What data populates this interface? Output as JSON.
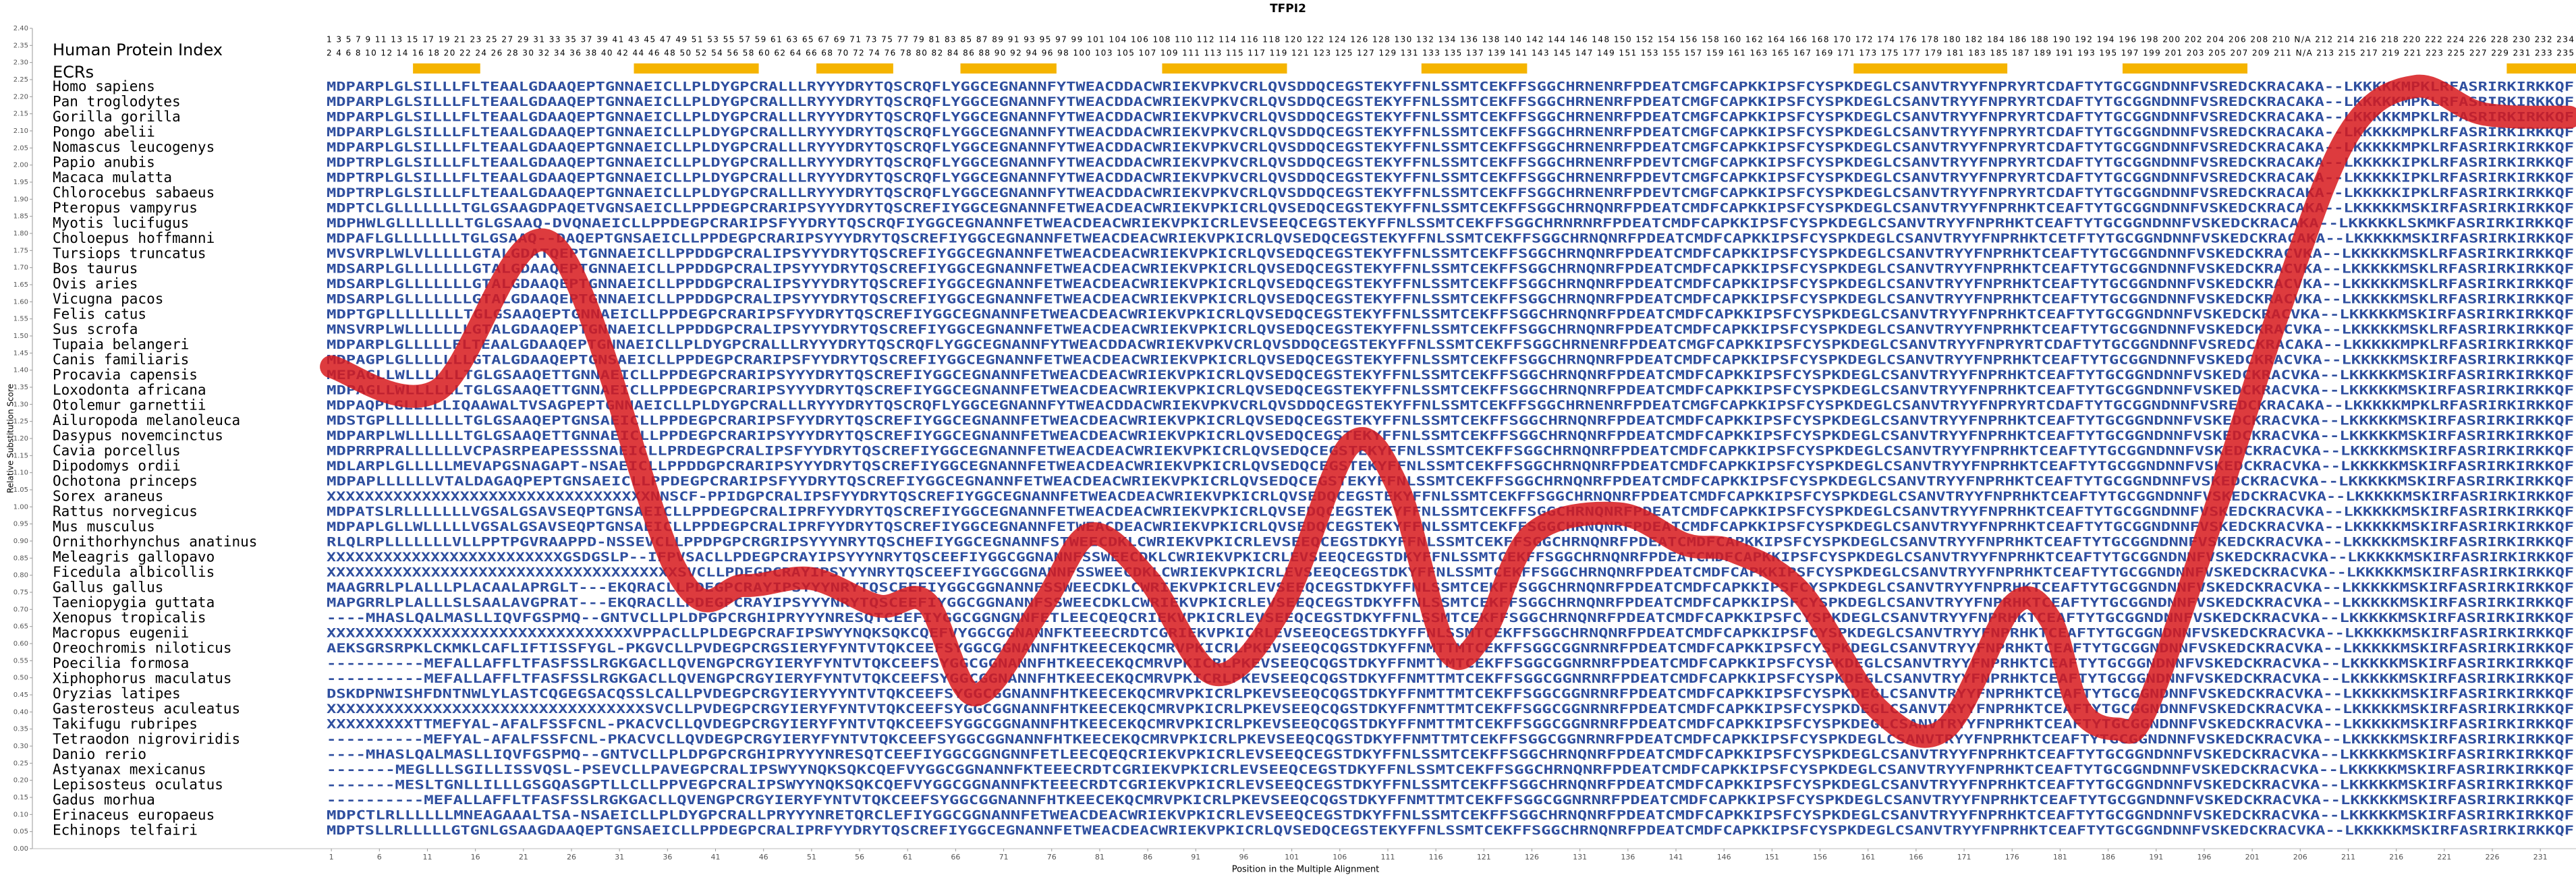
{
  "chart_data": {
    "type": "line",
    "title": "TFPI2",
    "ylabel": "Relative Substitution Score",
    "xlabel": "Position in the Multiple Alignment",
    "color": "#d7191c",
    "xlim": [
      0.5,
      234.5
    ],
    "ylim": [
      0,
      2.4
    ],
    "xticks": [
      1,
      6,
      11,
      16,
      21,
      26,
      31,
      36,
      41,
      46,
      51,
      56,
      61,
      66,
      71,
      76,
      81,
      86,
      91,
      96,
      101,
      106,
      111,
      116,
      121,
      126,
      131,
      136,
      141,
      146,
      151,
      156,
      161,
      166,
      171,
      176,
      181,
      186,
      191,
      196,
      201,
      206,
      211,
      216,
      221,
      226,
      231
    ],
    "yticks": [
      {
        "value": 0,
        "label": "0.00"
      },
      {
        "value": 0.05,
        "label": "0.05"
      },
      {
        "value": 0.1,
        "label": "0.10"
      },
      {
        "value": 0.15,
        "label": "0.15"
      },
      {
        "value": 0.2,
        "label": "0.20"
      },
      {
        "value": 0.25,
        "label": "0.25"
      },
      {
        "value": 0.3,
        "label": "0.30"
      },
      {
        "value": 0.35,
        "label": "0.35"
      },
      {
        "value": 0.4,
        "label": "0.40"
      },
      {
        "value": 0.45,
        "label": "0.45"
      },
      {
        "value": 0.5,
        "label": "0.50"
      },
      {
        "value": 0.55,
        "label": "0.55"
      },
      {
        "value": 0.6,
        "label": "0.60"
      },
      {
        "value": 0.65,
        "label": "0.65"
      },
      {
        "value": 0.7,
        "label": "0.70"
      },
      {
        "value": 0.75,
        "label": "0.75"
      },
      {
        "value": 0.8,
        "label": "0.80"
      },
      {
        "value": 0.85,
        "label": "0.85"
      },
      {
        "value": 0.9,
        "label": "0.90"
      },
      {
        "value": 0.95,
        "label": "0.95"
      },
      {
        "value": 1,
        "label": "1.00"
      },
      {
        "value": 1.05,
        "label": "1.05"
      },
      {
        "value": 1.1,
        "label": "1.10"
      },
      {
        "value": 1.15,
        "label": "1.15"
      },
      {
        "value": 1.2,
        "label": "1.20"
      },
      {
        "value": 1.25,
        "label": "1.25"
      },
      {
        "value": 1.3,
        "label": "1.30"
      },
      {
        "value": 1.35,
        "label": "1.35"
      },
      {
        "value": 1.4,
        "label": "1.40"
      },
      {
        "value": 1.45,
        "label": "1.45"
      },
      {
        "value": 1.5,
        "label": "1.50"
      },
      {
        "value": 1.55,
        "label": "1.55"
      },
      {
        "value": 1.6,
        "label": "1.60"
      },
      {
        "value": 1.65,
        "label": "1.65"
      },
      {
        "value": 1.7,
        "label": "1.70"
      },
      {
        "value": 1.75,
        "label": "1.75"
      },
      {
        "value": 1.8,
        "label": "1.80"
      },
      {
        "value": 1.85,
        "label": "1.85"
      },
      {
        "value": 1.9,
        "label": "1.90"
      },
      {
        "value": 1.95,
        "label": "1.95"
      },
      {
        "value": 2,
        "label": "2.00"
      },
      {
        "value": 2.05,
        "label": "2.05"
      },
      {
        "value": 2.1,
        "label": "2.10"
      },
      {
        "value": 2.15,
        "label": "2.15"
      },
      {
        "value": 2.2,
        "label": "2.20"
      },
      {
        "value": 2.25,
        "label": "2.25"
      },
      {
        "value": 2.3,
        "label": "2.30"
      },
      {
        "value": 2.35,
        "label": "2.35"
      },
      {
        "value": 2.4,
        "label": "2.40"
      }
    ],
    "x": [
      1,
      12,
      24,
      37,
      44,
      51,
      58,
      63,
      68,
      75,
      80,
      86,
      93,
      100,
      107,
      112,
      117,
      121,
      126,
      135,
      142,
      147,
      154,
      162,
      169,
      176,
      180,
      183,
      187,
      190,
      197,
      204,
      211,
      218,
      225,
      234
    ],
    "values": [
      1.41,
      1.34,
      1.77,
      0.81,
      0.77,
      0.79,
      0.71,
      0.72,
      0.45,
      0.71,
      0.92,
      0.79,
      0.51,
      0.71,
      1.18,
      1.06,
      0.59,
      0.63,
      0.92,
      0.98,
      0.89,
      0.87,
      0.75,
      0.41,
      0.35,
      0.71,
      0.67,
      0.41,
      0.35,
      0.41,
      0.98,
      1.59,
      2.09,
      2.23,
      2.15,
      2.14
    ],
    "alignment": {
      "index_label": "Human Protein Index",
      "ecr_label": "ECRs",
      "ecr_color": "#f5b400",
      "index_rows": [
        "1 3 5 7 9 11 13 15 17 19 21 23 25 27 29 31 33 35 37 39 41 43 45 47 49 51 53 55 57 59 61 63 65 67 69 71 73 75 77 79 81 83 85 87 89 91 93 95 97 99 101 104 106 108 110 112 114 116 118 120 122 124 126 128 130 132 134 136 138 140 142 144 146 148 150 152 154 156 158 160 162 164 166 168 170 172 174 176 178 180 182 184 186 188 190 192 194 196 198 200 202 204 206 208 210 N/A 212 214 216 218 220 222 224 226 228 230 232 234",
        "2 4 6 8 10 12 14 16 18 20 22 24 26 28 30 32 34 36 38 40 42 44 46 48 50 52 54 56 58 60 62 64 66 68 70 72 74 76 78 80 82 84 86 88 90 92 94 96 98 100 103 105 107 109 111 113 115 117 119 121 123 125 127 129 131 133 135 137 139 141 143 145 147 149 151 153 155 157 159 161 163 165 167 169 171 173 175 177 179 181 183 185 187 189 191 193 195 197 199 201 203 205 207 209 211 N/A 213 215 217 219 221 223 225 227 229 231 233 235"
      ],
      "ecrs": [
        [
          10,
          16
        ],
        [
          33,
          45
        ],
        [
          52,
          59
        ],
        [
          67,
          76
        ],
        [
          88,
          100
        ],
        [
          115,
          125
        ],
        [
          160,
          175
        ],
        [
          188,
          200
        ],
        [
          228,
          235
        ]
      ],
      "species": [
        "Homo sapiens",
        "Pan troglodytes",
        "Gorilla gorilla",
        "Pongo abelii",
        "Nomascus leucogenys",
        "Papio anubis",
        "Macaca mulatta",
        "Chlorocebus sabaeus",
        "Pteropus vampyrus",
        "Myotis lucifugus",
        "Choloepus hoffmanni",
        "Tursiops truncatus",
        "Bos taurus",
        "Ovis aries",
        "Vicugna pacos",
        "Felis catus",
        "Sus scrofa",
        "Tupaia belangeri",
        "Canis familiaris",
        "Procavia capensis",
        "Loxodonta africana",
        "Otolemur garnettii",
        "Ailuropoda melanoleuca",
        "Dasypus novemcinctus",
        "Cavia porcellus",
        "Dipodomys ordii",
        "Ochotona princeps",
        "Sorex araneus",
        "Rattus norvegicus",
        "Mus musculus",
        "Ornithorhynchus anatinus",
        "Meleagris gallopavo",
        "Ficedula albicollis",
        "Gallus gallus",
        "Taeniopygia guttata",
        "Xenopus tropicalis",
        "Macropus eugenii",
        "Oreochromis niloticus",
        "Poecilia formosa",
        "Xiphophorus maculatus",
        "Oryzias latipes",
        "Gasterosteus aculeatus",
        "Takifugu rubripes",
        "Tetraodon nigroviridis",
        "Danio rerio",
        "Astyanax mexicanus",
        "Lepisosteus oculatus",
        "Gadus morhua",
        "Erinaceus europaeus",
        "Echinops telfairi"
      ],
      "sequences": [
        "MDPARPLGLSILLLFLTEAALGDAAQEPTGNNAEICLLPLDYGPCRALLLRYYYDRYTQSCRQFLYGGCEGNANNFYTWEACDDACWRIEKVPKVCRLQVSDDQCEGSTEKYFFNLSSMTCEKFFSGGCHRNENRFPDEATCMGFCAPKKIPSFCYSPKDEGLCSANVTRYYFNPRYRTCDAFTYTGCGGNDNNFVSREDCKRACAKA--LKKKKKMPKLRFASRIRKIRKKQF",
        "MDPARPLGLSILLLFLTEAALGDAAQEPTGNNAEICLLPLDYGPCRALLLRYYYDRYTQSCRQFLYGGCEGNANNFYTWEACDDACWRIEKVPKVCRLQVSDDQCEGSTEKYFFNLSSMTCEKFFSGGCHRNENRFPDEATCMGFCAPKKIPSFCYSPKDEGLCSANVTRYYFNPRYRTCDAFTYTGCGGNDNNFVSREDCKRACAKA--LKKKKKMPKLRFASRIRKIRKKQF",
        "MDPARPLGLSILLLFLTEAALGDAAQEPTGNNAEICLLPLDYGPCRALLLRYYYDRYTQSCRQFLYGGCEGNANNFYTWEACDDACWRIEKVPKVCRLQVSDDQCEGSTEKYFFNLSSMTCEKFFSGGCHRNENRFPDEATCMGFCAPKKIPSFCYSPKDEGLCSANVTRYYFNPRYRTCDAFTYTGCGGNDNNFVSREDCKRACAKA--LKKKKKMPKLRFASRIRKIRKKQF",
        "MDPARPLGLSILLLFLTEAALGDAAQEPTGNNAEICLLPLDYGPCRALLLRYYYDRYTQSCRQFLYGGCEGNANNFYTWEACDDACWRIEKVPKVCRLQVSDDQCEGSTEKYFFNLSSMTCEKFFSGGCHRNENRFPDEATCMGFCAPKKIPSFCYSPKDEGLCSANVTRYYFNPRYRTCDAFTYTGCGGNDNNFVSREDCKRACAKA--LKKKKKMPKLRFASRIRKIRKKQF",
        "MDPARPLGLSILLLFLTEAALGDAAQEPTGNNAEICLLPLDYGPCRALLLRYYYDRYTQSCRQFLYGGCEGNANNFYTWEACDDACWRIEKVPKVCRLQVSDDQCEGSTEKYFFNLSSMTCEKFFSGGCHRNENRFPDEATCMGFCAPKKIPSFCYSPKDEGLCSANVTRYYFNPRYRTCDAFTYTGCGGNDNNFVSREDCKRACAKA--LKKKKKMPKLRFASRIRKIRKKQF",
        "MDPTRPLGLSILLLFLTEAALGDAAQEPTGNNAEICLLPLDYGPCRALLLRYYYDRYTQSCRQFLYGGCEGNANNFYTWEACDDACWRIEKVPKVCRLQVSDDQCEGSTEKYFFNLSSMTCEKFFSGGCHRNENRFPDEVTCMGFCAPKKIPSFCYSPKDEGLCSANVTRYYFNPRYRTCDAFTYTGCGGNDNNFVSREDCKRACAKA--LKKKKKIPKLRFASRIRKIRKKQF",
        "MDPTRPLGLSILLLFLTEAALGDAAQEPTGNNAEICLLPLDYGPCRALLLRYYYDRYTQSCRQFLYGGCEGNANNFYTWEACDDACWRIEKVPKVCRLQVSDDQCEGSTEKYFFNLSSMTCEKFFSGGCHRNENRFPDEVTCMGFCAPKKIPSFCYSPKDEGLCSANVTRYYFNPRYRTCDAFTYTGCGGNDNNFVSREDCKRACAKA--LKKKKKIPKLRFASRIRKIRKKQF",
        "MDPTRPLGLSILLLFLTEAALGDAAQEPTGNNAEICLLPLDYGPCRALLLRYYYDRYTQSCRQFLYGGCEGNANNFYTWEACDDACWRIEKVPKVCRLQVSDDQCEGSTEKYFFNLSSMTCEKFFSGGCHRNENRFPDEVTCMGFCAPKKIPSFCYSPKDEGLCSANVTRYYFNPRYRTCDAFTYTGCGGNDNNFVSREDCKRACAKA--LKKKKKIPKLRFASRIRKIRKKQF",
        "MDPTCLGLLLLLLLTGLGSAAGDPAQETVGNSAEICLLPPDEGPCRARIPSYYYDRYTQSCREFIYGGCEGNANNFETWEACDEACWRIEKVPKICRLQVSEDQCEGSTEKYFFNLSSMTCEKFFSGGCHRNQNRFPDEATCMDFCAPKKIPSFCYSPKDEGLCSANVTRYYFNPRHKTCEAFTYTGCGGNDNNFVSKEDCKRACAKA--LKKKKKMSKIRFASRIRKIRKKQF",
        "MDPHWLGLLLLLLLTGLGSAAQ-DVQNAEICLLPPDEGPCRARIPSFYYDRYTQSCRQFIYGGCEGNANNFETWEACDEACWRIEKVPKICRLEVSEEQCEGSTEKYFFNLSSMTCEKFFSGGCHRNRNRFPDEATCMDFCAPKKIPSFCYSPKDEGLCSANVTRYYFNPRHKTCEAFTYTGCGGNDNNFVSKEDCKRACAKA--LKKKKKLSKMKFASRIRKIRKKQF",
        "MDPAFLGLLLLLLLTGLGSAAQ--DAQEPTGNSAEICLLPPDEGPCRARIPSYYYDRYTQSCREFIYGGCEGNANNFETWEACDEACWRIEKVPKICRLQVSEDQCEGSTEKYFFNLSSMTCEKFFSGGCHRNQNRFPDEATCMDFCAPKKIPSFCYSPKDEGLCSANVTRYYFNPRHKTCETFTYTGCGGNDNNFVSKEDCKRACAKA--LKKKKKMSKIRFASRIRKIRKKQF",
        "MVSVRPLWLVLLLLLGTALGDATQEPTGNNAEICLLPPDDGPCRALIPSYYYDRYTQSCREFIYGGCEGNANNFETWEACDEACWRIEKVPKICRLQVSEDQCEGSTEKYFFNLSSMTCEKFFSGGCHRNQNRFPDEATCMDFCAPKKIPSFCYSPKDEGLCSANVTRYYFNPRHKTCEAFTYTGCGGNDNNFVSKEDCKRACVKA--LKKKKKMSKLRFASRIRKIRKKQF",
        "MDSARPLGLLLLLLLGTALGDAAQEPTGNNAEICLLPPDDGPCRALIPSYYYDRYTQSCREFIYGGCEGNANNFETWEACDEACWRIEKVPKICRLQVSEDQCEGSTEKYFFNLSSMTCEKFFSGGCHRNQNRFPDEATCMDFCAPKKIPSFCYSPKDEGLCSANVTRYYFNPRHKTCEAFTYTGCGGNDNNFVSKEDCKRACVKA--LKKKKKMSKLRFASRIRKIRKKQF",
        "MDSARPLGLLLLLLLGTALGDAAQEPTGNNAEICLLPPDDGPCRALIPSYYYDRYTQSCREFIYGGCEGNANNFETWEACDEACWRIEKVPKICRLQVSEDQCEGSTEKYFFNLSSMTCEKFFSGGCHRNQNRFPDEATCMDFCAPKKIPSFCYSPKDEGLCSANVTRYYFNPRHKTCEAFTYTGCGGNDNNFVSKEDCKRACVKA--LKKKKKMSKLRFASRIRKIRKKQF",
        "MDSARPLGLLLLLLLGTALGDAAQEPTGNNAEICLLPPDDGPCRALIPSYYYDRYTQSCREFIYGGCEGNANNFETWEACDEACWRIEKVPKICRLQVSEDQCEGSTEKYFFNLSSMTCEKFFSGGCHRNQNRFPDEATCMDFCAPKKIPSFCYSPKDEGLCSANVTRYYFNPRHKTCEAFTYTGCGGNDNNFVSKEDCKRACVKA--LKKKKKMSKLRFASRIRKIRKKQF",
        "MDPTGPLLLLLLLLTGLGSAAQEPTGNNAEICLLPPDEGPCRARIPSFYYDRYTQSCREFIYGGCEGNANNFETWEACDEACWRIEKVPKICRLQVSEDQCEGSTEKYFFNLSSMTCEKFFSGGCHRNQNRFPDEATCMDFCAPKKIPSFCYSPKDEGLCSANVTRYYFNPRHKTCEAFTYTGCGGNDNNFVSKEDCKRACVKA--LKKKKKMSKIRFASRIRKIRKKQF",
        "MNSVRPLWLLLLLLLGTALGDAAQEPTGNNAEICLLPPDDGPCRALIPSYYYDRYTQSCREFIYGGCEGNANNFETWEACDEACWRIEKVPKICRLQVSEDQCEGSTEKYFFNLSSMTCEKFFSGGCHRNQNRFPDEATCMDFCAPKKIPSFCYSPKDEGLCSANVTRYYFNPRHKTCEAFTYTGCGGNDNNFVSKEDCKRACVKA--LKKKKKMSKLRFASRIRKIRKKQF",
        "MDPARPLGLLLLLFLTEAALGDAAQEPTGNNAEICLLPLDYGPCRALLLRYYYDRYTQSCRQFLYGGCEGNANNFYTWEACDDACWRIEKVPKVCRLQVSDDQCEGSTEKYFFNLSSMTCEKFFSGGCHRNENRFPDEATCMGFCAPKKIPSFCYSPKDEGLCSANVTRYYFNPRYRTCDAFTYTGCGGNDNNFVSREDCKRACAKA--LKKKKKMPKLRFASRIRKIRKKQF",
        "MDPAGPLGLLLLLLLGTALGDAAQEPTGNSAEICLLPPDEGPCRARIPSFYYDRYTQSCREFIYGGCEGNANNFETWEACDEACWRIEKVPKICRLQVSEDQCEGSTEKYFFNLSSMTCEKFFSGGCHRNQNRFPDEATCMDFCAPKKIPSFCYSPKDEGLCSANVTRYYFNPRHKTCEAFTYTGCGGNDNNFVSKEDCKRACVKA--LKKKKKMSKIRFASRIRKIRKKQF",
        "MEPAGLLWLLLLLLTGLGSAAQETTGNNAEICLLPPDEGPCRARIPSYYYDRYTQSCREFIYGGCEGNANNFETWEACDEACWRIEKVPKICRLQVSEDQCEGSTEKYFFNLSSMTCEKFFSGGCHRNQNRFPDEATCMDFCAPKKIPSFCYSPKDEGLCSANVTRYYFNPRHKTCEAFTYTGCGGNDNNFVSKEDCKRACVKA--LKKKKKMSKIRFASRIRKIRKKQF",
        "MDPAGLLWLLLLLLTGLGSAAQETTGNNAEICLLPPDEGPCRARIPSYYYDRYTQSCREFIYGGCEGNANNFETWEACDEACWRIEKVPKICRLQVSEDQCEGSTEKYFFNLSSMTCEKFFSGGCHRNQNRFPDEATCMDFCAPKKIPSFCYSPKDEGLCSANVTRYYFNPRHKTCEAFTYTGCGGNDNNFVSKEDCKRACVKA--LKKKKKMSKIRFASRIRKIRKKQF",
        "MDPAQPLGLLLLLIQAAWALTVSAGPEPTGNNAEICLLPLDYGPCRALLLRYYYDRYTQSCRQFLYGGCEGNANNFYTWEACDDACWRIEKVPKVCRLQVSDDQCEGSTEKYFFNLSSMTCEKFFSGGCHRNENRFPDEATCMGFCAPKKIPSFCYSPKDEGLCSANVTRYYFNPRYRTCDAFTYTGCGGNDNNFVSREDCKRACAKA--LKKKKKMPKLRFASRIRKIRKKQF",
        "MDSTGPLLLLLLLLTGLGSAAQEPTGNSAEICLLPPDEGPCRARIPSFYYDRYTQSCREFIYGGCEGNANNFETWEACDEACWRIEKVPKICRLQVSEDQCEGSTEKYFFNLSSMTCEKFFSGGCHRNQNRFPDEATCMDFCAPKKIPSFCYSPKDEGLCSANVTRYYFNPRHKTCEAFTYTGCGGNDNNFVSKEDCKRACVKA--LKKKKKMSKIRFASRIRKIRKKQF",
        "MDPARPLWLLLLLLTGLGSAAQETTGNNAEICLLPPDEGPCRARIPSYYYDRYTQSCREFIYGGCEGNANNFETWEACDEACWRIEKVPKICRLQVSEDQCEGSTEKYFFNLSSMTCEKFFSGGCHRNQNRFPDEATCMDFCAPKKIPSFCYSPKDEGLCSANVTRYYFNPRHKTCEAFTYTGCGGNDNNFVSKEDCKRACVKA--LKKKKKMSKIRFASRIRKIRKKQF",
        "MDPRRPRALLLLLLVCPASRPEAPESSSNAEICLLPRDEGPCRALIPSFYYDRYTQSCREFIYGGCEGNANNFETWEACDEACWRIEKVPKICRLQVSEDQCEGSTEKYFFNLSSMTCEKFFSGGCHRNQNRFPDEATCMDFCAPKKIPSFCYSPKDEGLCSANVTRYYFNPRHKTCEAFTYTGCGGNDNNFVSKEDCKRACVKA--LKKKKKMSKIRFASRIRKIRKKQF",
        "MDLARPLGLLLLLMEVAPGSNAGAPT-NSAEICLLPPDDGPCRARIPSYYYDRYTQSCREFIYGGCEGNANNFETWEACDEACWRIEKVPKICRLQVSEDQCEGSTEKYFFNLSSMTCEKFFSGGCHRNQNRFPDEATCMDFCAPKKIPSFCYSPKDEGLCSANVTRYYFNPRHKTCEAFTYTGCGGNDNNFVSKEDCKRACVKA--LKKKKKMSKIRFASRIRKIRKKQF",
        "MDPAPLLLLLLVTALDAGAQPEPTGNSAEICLLPPDEGPCRARIPSFYYDRYTQSCREFIYGGCEGNANNFETWEACDEACWRIEKVPKICRLQVSEDQCEGSTEKYFFNLSSMTCEKFFSGGCHRNQNRFPDEATCMDFCAPKKIPSFCYSPKDEGLCSANVTRYYFNPRHKTCEAFTYTGCGGNDNNFVSKEDCKRACVKA--LKKKKKMSKIRFASRIRKIRKKQF",
        "XXXXXXXXXXXXXXXXXXXXXXXXXXXXXXXXXXNNSCF-PPIDGPCRALIPSFYYDRYTQSCREFIYGGCEGNANNFETWEACDEACWRIEKVPKICRLQVSEDQCEGSTEKYFFNLSSMTCEKFFSGGCHRNQNRFPDEATCMDFCAPKKIPSFCYSPKDEGLCSANVTRYYFNPRHKTCEAFTYTGCGGNDNNFVSKEDCKRACVKA--LKKKKKMSKIRFASRIRKIRKKQF",
        "MDPATSLRLLLLLLLVGSALGSAVSEQPTGNSAEICLLPPDEGPCRALIPRFYYDRYTQSCREFIYGGCEGNANNFETWEACDEACWRIEKVPKICRLQVSEDQCEGSTEKYFFNLSSMTCEKFFSGGCHRNQNRFPDEATCMDFCAPKKIPSFCYSPKDEGLCSANVTRYYFNPRHKTCEAFTYTGCGGNDNNFVSKEDCKRACVKA--LKKKKKMSKIRFASRIRKIRKKQF",
        "MDPAPLGLLWLLLLLVGSALGSAVSEQPTGNSAEICLLPPDEGPCRALIPRFYYDRYTQSCREFIYGGCEGNANNFETWEACDEACWRIEKVPKICRLQVSEDQCEGSTEKYFFNLSSMTCEKFFSGGCHRNQNRFPDEATCMDFCAPKKIPSFCYSPKDEGLCSANVTRYYFNPRHKTCEAFTYTGCGGNDNNFVSKEDCKRACVKA--LKKKKKMSKIRFASRIRKIRKKQF",
        "RLQLRPLLLLLLLVLLPPTPGVRAAPPD-NSSEVCLLPPDPGPCRGRIPSYYYNRYTQSCHEFIYGGCEGNANNFSTWEECDKLCWRIEKVPKICRLEVSEEQCEGSTDKYFFNLSSMTCEKFFSGGCHRNQNRFPDEATCMDFCAPKKIPSFCYSPKDEGLCSANVTRYYFNPRHKTCEAFTYTGCGGNDNNFVSKEDCKRACVKA--LKKKKKMSKIRFASRIRKIRKKQF",
        "XXXXXXXXXXXXXXXXXXXXXXXXXGSDGSLP--IFPVSACLLPDEGPCRAYIPSYYYNRYTQSCEEFIYGGCGGNANNFSSWEECDKLCWRIEKVPKICRLEVSEEQCEGSTDKYFFNLSSMTCEKFFSGGCHRNQNRFPDEATCMDFCAPKKIPSFCYSPKDEGLCSANVTRYYFNPRHKTCEAFTYTGCGGNDNNFVSKEDCKRACVKA--LKKKKKMSKIRFASRIRKIRKKQF",
        "XXXXXXXXXXXXXXXXXXXXXXXXXXXXXXXXXXXXXSVCLLPDEGPCRAYIPSYYYNRYTQSCEEFIYGGCGGNANNFSSWEECDKLCWRIEKVPKICRLEVSEEQCEGSTDKYFFNLSSMTCEKFFSGGCHRNQNRFPDEATCMDFCAPKKIPSFCYSPKDEGLCSANVTRYYFNPRHKTCEAFTYTGCGGNDNNFVSKEDCKRACVKA--LKKKKKMSKIRFASRIRKIRKKQF",
        "MAAGRRLPLALLLPLACAALAPRGLT---EKQRACLLPDEGPCRAYIPSYYYNRYTQSCEEFIYGGCGGNANNFSSWEECDKLCWRIEKVPKICRLEVSEEQCEGSTDKYFFNLSSMTCEKFFSGGCHRNQNRFPDEATCMDFCAPKKIPSFCYSPKDEGLCSANVTRYYFNPRHKTCEAFTYTGCGGNDNNFVSKEDCKRACVKA--LKKKKKMSKIRFASRIRKIRKKQF",
        "MAPGRRLPLALLLSLSAALAVGPRAT---EKQRACLLPDEGPCRAYIPSYYYNRYTQSCEEFIYGGCGGNANNFSSWEECDKLCWRIEKVPKICRLEVSEEQCEGSTDKYFFNLSSMTCEKFFSGGCHRNQNRFPDEATCMDFCAPKKIPSFCYSPKDEGLCSANVTRYYFNPRHKTCEAFTYTGCGGNDNNFVSKEDCKRACVKA--LKKKKKMSKIRFASRIRKIRKKQF",
        "----MHASLQALMASLLIQVFGSPMQ--GNTVCLLPLDPGPCRGHIPRYYYNRESQTCEEFIYGGCGGNGNNFETLEECQEQCRIEKVPKICRLEVSEEQCEGSTDKYFFNLSSMTCEKFFSGGCHRNQNRFPDEATCMDFCAPKKIPSFCYSPKDEGLCSANVTRYYFNPRHKTCEAFTYTGCGGNDNNFVSKEDCKRACVKA--LKKKKKMSKIRFASRIRKIRKKQF",
        "XXXXXXXXXXXXXXXXXXXXXXXXXXXXXXXXVPPACLLPLDEGPCRAFIPSWYYNQKSQKCQEFVYGGCGGNANNFKTEEECRDTCGRIEKVPKICRLEVSEEQCEGSTDKYFFNLSSMTCEKFFSGGCHRNQNRFPDEATCMDFCAPKKIPSFCYSPKDEGLCSANVTRYYFNPRHKTCEAFTYTGCGGNDNNFVSKEDCKRACVKA--LKKKKKMSKIRFASRIRKIRKKQF",
        "AEKSGRSRPKLCKMKLCAFLIFTISSFYGL-PKGVCLLPVDEGPCRGSIERYFYNTVTQKCEEFSYGGCGGNANNFHTKEECEKQCMRVPKICRLPKEVSEEQCQGSTDKYFFNMTTMTCEKFFSGGCGGNRNRFPDEATCMDFCAPKKIPSFCYSPKDEGLCSANVTRYYFNPRHKTCEAFTYTGCGGNDNNFVSKEDCKRACVKA--LKKKKKMSKIRFASRIRKIRKKQF",
        "----------MEFALLAFFLTFASFSSLRGKGACLLQVENGPCRGYIERYFYNTVTQKCEEFSYGGCGGNANNFHTKEECEKQCMRVPKICRLPKEVSEEQCQGSTDKYFFNMTTMTCEKFFSGGCGGNRNRFPDEATCMDFCAPKKIPSFCYSPKDEGLCSANVTRYYFNPRHKTCEAFTYTGCGGNDNNFVSKEDCKRACVKA--LKKKKKMSKIRFASRIRKIRKKQF",
        "----------MEFALLAFFLTFASFSSLRGKGACLLQVENGPCRGYIERYFYNTVTQKCEEFSYGGCGGNANNFHTKEECEKQCMRVPKICRLPKEVSEEQCQGSTDKYFFNMTTMTCEKFFSGGCGGNRNRFPDEATCMDFCAPKKIPSFCYSPKDEGLCSANVTRYYFNPRHKTCEAFTYTGCGGNDNNFVSKEDCKRACVKA--LKKKKKMSKIRFASRIRKIRKKQF",
        "DSKDPNWISHFDNTNWLYLASTCQGEGSACQSSLCALLPVDEGPCRGYIERYYYNTVTQKCEEFSYGGCGGNANNFHTKEECEKQCMRVPKICRLPKEVSEEQCQGSTDKYFFNMTTMTCEKFFSGGCGGNRNRFPDEATCMDFCAPKKIPSFCYSPKDEGLCSANVTRYYFNPRHKTCEAFTYTGCGGNDNNFVSKEDCKRACVKA--LKKKKKMSKIRFASRIRKIRKKQF",
        "XXXXXXXXXXXXXXXXXXXXXXXXXXXXXXXXXSVCLLPVDEGPCRGYIERYFYNTVTQKCEEFSYGGCGGNANNFHTKEECEKQCMRVPKICRLPKEVSEEQCQGSTDKYFFNMTTMTCEKFFSGGCGGNRNRFPDEATCMDFCAPKKIPSFCYSPKDEGLCSANVTRYYFNPRHKTCEAFTYTGCGGNDNNFVSKEDCKRACVKA--LKKKKKMSKIRFASRIRKIRKKQF",
        "XXXXXXXXXTTMEFYAL-AFALFSSFCNL-PKACVCLLQVDEGPCRGYIERYFYNTVTQKCEEFSYGGCGGNANNFHTKEECEKQCMRVPKICRLPKEVSEEQCQGSTDKYFFNMTTMTCEKFFSGGCGGNRNRFPDEATCMDFCAPKKIPSFCYSPKDEGLCSANVTRYYFNPRHKTCEAFTYTGCGGNDNNFVSKEDCKRACVKA--LKKKKKMSKIRFASRIRKIRKKQF",
        "----------MEFYAL-AFALFSSFCNL-PKACVCLLQVDEGPCRGYIERYFYNTVTQKCEEFSYGGCGGNANNFHTKEECEKQCMRVPKICRLPKEVSEEQCQGSTDKYFFNMTTMTCEKFFSGGCGGNRNRFPDEATCMDFCAPKKIPSFCYSPKDEGLCSANVTRYYFNPRHKTCEAFTYTGCGGNDNNFVSKEDCKRACVKA--LKKKKKMSKIRFASRIRKIRKKQF",
        "----MHASLQALMASLLIQVFGSPMQ--GNTVCLLPLDPGPCRGHIPRYYYNRESQTCEEFIYGGCGGNGNNFETLEECQEQCRIEKVPKICRLEVSEEQCEGSTDKYFFNLSSMTCEKFFSGGCHRNQNRFPDEATCMDFCAPKKIPSFCYSPKDEGLCSANVTRYYFNPRHKTCEAFTYTGCGGNDNNFVSKEDCKRACVKA--LKKKKKMSKIRFASRIRKIRKKQF",
        "-------MEGLLLSGILLISSVQSL-PSEVCLLPAVEGPCRALIPSWYYNQKSQKCQEFVYGGCGGNANNFKTEEECRDTCGRIEKVPKICRLEVSEEQCEGSTDKYFFNLSSMTCEKFFSGGCHRNQNRFPDEATCMDFCAPKKIPSFCYSPKDEGLCSANVTRYYFNPRHKTCEAFTYTGCGGNDNNFVSKEDCKRACVKA--LKKKKKMSKIRFASRIRKIRKKQF",
        "-------MESLTGNLLILLLGSGQASGPTLLCLLPPVEGPCRALIPSWYYNQKSQKCQEFVYGGCGGNANNFKTEEECRDTCGRIEKVPKICRLEVSEEQCEGSTDKYFFNLSSMTCEKFFSGGCHRNQNRFPDEATCMDFCAPKKIPSFCYSPKDEGLCSANVTRYYFNPRHKTCEAFTYTGCGGNDNNFVSKEDCKRACVKA--LKKKKKMSKIRFASRIRKIRKKQF",
        "----------MEFALLAFFLTFASFSSLRGKGACLLQVENGPCRGYIERYFYNTVTQKCEEFSYGGCGGNANNFHTKEECEKQCMRVPKICRLPKEVSEEQCQGSTDKYFFNMTTMTCEKFFSGGCGGNRNRFPDEATCMDFCAPKKIPSFCYSPKDEGLCSANVTRYYFNPRHKTCEAFTYTGCGGNDNNFVSKEDCKRACVKA--LKKKKKMSKIRFASRIRKIRKKQF",
        "MDPCTLRLLLLLLMNEAGAAALTSA-NSAEICLLPLDYGPCRALLPRYYYNRETQRCLEFIYGGCGGNANNFETWEACDEACWRIEKVPKICRLEVSEEQCEGSTDKYFFNLSSMTCEKFFSGGCHRNQNRFPDEATCMDFCAPKKIPSFCYSPKDEGLCSANVTRYYFNPRHKTCEAFTYTGCGGNDNNFVSKEDCKRACVKA--LKKKKKMSKIRFASRIRKIRKKQF",
        "MDPTSLLRLLLLLGTGNLGSAAGDAAQEPTGNSAEICLLPPDEGPCRALIPRFYYDRYTQSCREFIYGGCEGNANNFETWEACDEACWRIEKVPKICRLQVSEDQCEGSTEKYFFNLSSMTCEKFFSGGCHRNQNRFPDEATCMDFCAPKKIPSFCYSPKDEGLCSANVTRYYFNPRHKTCEAFTYTGCGGNDNNFVSKEDCKRACVKA--LKKKKKMSKIRFASRIRKIRKKQF"
      ]
    }
  }
}
